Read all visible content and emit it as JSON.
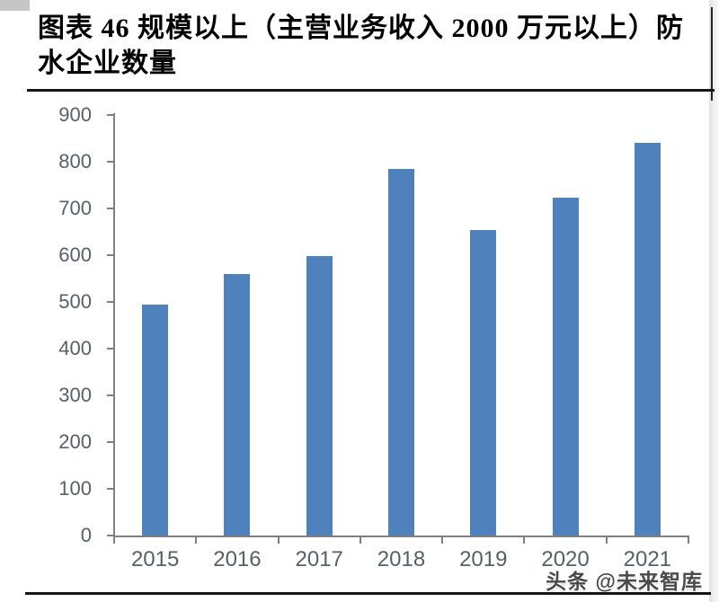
{
  "header": {
    "title_lines": [
      "图表 46 规模以上（主营业务收入 2000 万元以上）防",
      "水企业数量"
    ]
  },
  "watermark": {
    "text": "头条 @未来智库"
  },
  "colors": {
    "bar": "#4f81bd",
    "axis": "#7f7f7f",
    "tick_label": "#566069",
    "title": "#000000",
    "watermark": "#4a4a4a",
    "rule": "#151515"
  },
  "chart_data": {
    "type": "bar",
    "title": "图表 46 规模以上（主营业务收入 2000 万元以上）防水企业数量",
    "categories": [
      "2015",
      "2016",
      "2017",
      "2018",
      "2019",
      "2020",
      "2021"
    ],
    "values": [
      495,
      560,
      598,
      785,
      653,
      724,
      840
    ],
    "xlabel": "",
    "ylabel": "",
    "ylim": [
      0,
      900
    ],
    "ytick_interval": 100,
    "grid": false,
    "legend": false,
    "legend_position": "none"
  }
}
